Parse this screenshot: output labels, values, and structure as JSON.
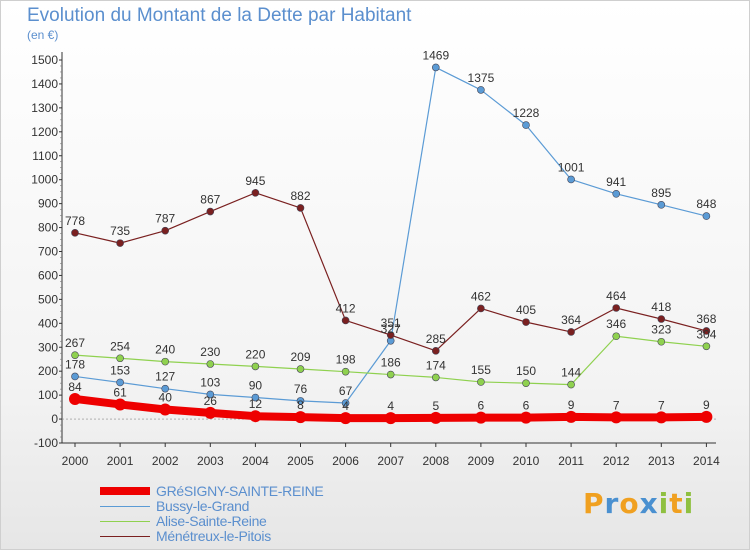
{
  "title": "Evolution du Montant de la Dette par Habitant",
  "unit_label": "(en €)",
  "chart_data": {
    "type": "line",
    "x": [
      2000,
      2001,
      2002,
      2003,
      2004,
      2005,
      2006,
      2007,
      2008,
      2009,
      2010,
      2011,
      2012,
      2013,
      2014
    ],
    "ylim": [
      -100,
      1500
    ],
    "yticks": [
      -100,
      0,
      100,
      200,
      300,
      400,
      500,
      600,
      700,
      800,
      900,
      1000,
      1100,
      1200,
      1300,
      1400,
      1500
    ],
    "grid": false,
    "legend_position": "bottom-left",
    "series": [
      {
        "name": "GRéSIGNY-SAINTE-REINE",
        "color": "#ee0000",
        "values": [
          84,
          61,
          40,
          26,
          12,
          8,
          4,
          4,
          5,
          6,
          6,
          9,
          7,
          7,
          9
        ]
      },
      {
        "name": "Bussy-le-Grand",
        "color": "#5b9bd5",
        "values": [
          178,
          153,
          127,
          103,
          90,
          76,
          67,
          327,
          1469,
          1375,
          1228,
          1001,
          941,
          895,
          848
        ]
      },
      {
        "name": "Alise-Sainte-Reine",
        "color": "#8fd14f",
        "values": [
          267,
          254,
          240,
          230,
          220,
          209,
          198,
          186,
          174,
          155,
          150,
          144,
          346,
          323,
          304
        ]
      },
      {
        "name": "Ménétreux-le-Pitois",
        "color": "#7a2020",
        "values": [
          778,
          735,
          787,
          867,
          945,
          882,
          412,
          351,
          285,
          462,
          405,
          364,
          464,
          418,
          368
        ]
      }
    ]
  },
  "logo": {
    "letters": [
      "P",
      "r",
      "o",
      "x",
      "i",
      "t",
      "i"
    ],
    "colors": [
      "#f0a020",
      "#4a90d0",
      "#f0a020",
      "#4a90d0",
      "#8fc040",
      "#f0a020",
      "#8fc040"
    ]
  }
}
